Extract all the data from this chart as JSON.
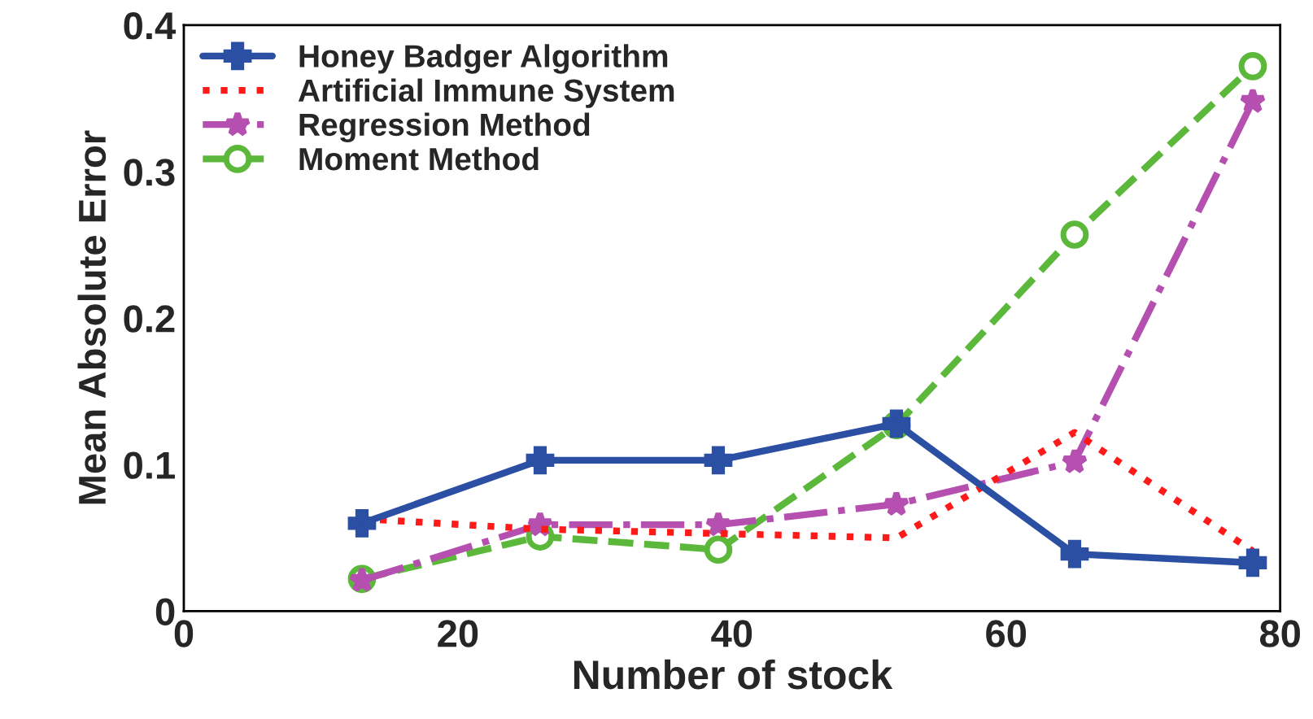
{
  "chart_data": {
    "type": "line",
    "xlabel": "Number of stock",
    "ylabel": "Mean Absolute Error",
    "x": [
      13,
      26,
      39,
      52,
      65,
      78
    ],
    "series": [
      {
        "name": "Honey Badger Algorithm",
        "color": "#2a4fa3",
        "values": [
          0.06,
          0.103,
          0.103,
          0.128,
          0.039,
          0.033
        ],
        "marker": "cross",
        "line_style": "solid"
      },
      {
        "name": "Artificial Immune System",
        "color": "#ff1a1a",
        "values": [
          0.063,
          0.056,
          0.053,
          0.05,
          0.122,
          0.041
        ],
        "marker": "none",
        "line_style": "dotted"
      },
      {
        "name": "Regression Method",
        "color": "#b54fb0",
        "values": [
          0.021,
          0.059,
          0.059,
          0.073,
          0.102,
          0.348
        ],
        "marker": "star",
        "line_style": "dashdot"
      },
      {
        "name": "Moment Method",
        "color": "#5cb83a",
        "values": [
          0.022,
          0.051,
          0.042,
          0.127,
          0.257,
          0.372
        ],
        "marker": "circle",
        "line_style": "dashed"
      }
    ],
    "xlim": [
      0,
      80
    ],
    "xticks": [
      0,
      20,
      40,
      60,
      80
    ],
    "ylim": [
      0,
      0.4
    ],
    "yticks": [
      0,
      0.1,
      0.2,
      0.3,
      0.4
    ],
    "grid": false,
    "legend": "top left"
  }
}
